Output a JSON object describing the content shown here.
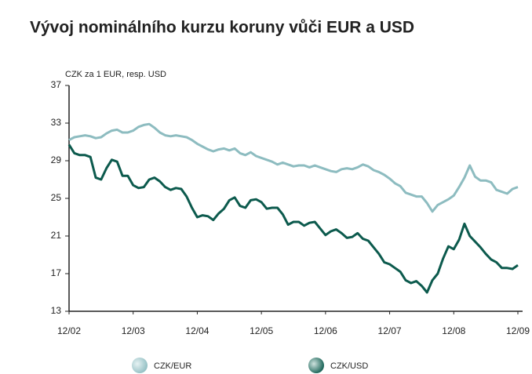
{
  "chart_data": {
    "type": "line",
    "title": "Vývoj nominálního kurzu koruny vůči EUR a USD",
    "y_label": "CZK za 1 EUR, resp. USD",
    "categories": [
      "12/02",
      null,
      null,
      null,
      null,
      null,
      null,
      null,
      null,
      null,
      null,
      null,
      "12/03",
      null,
      null,
      null,
      null,
      null,
      null,
      null,
      null,
      null,
      null,
      null,
      "12/04",
      null,
      null,
      null,
      null,
      null,
      null,
      null,
      null,
      null,
      null,
      null,
      "12/05",
      null,
      null,
      null,
      null,
      null,
      null,
      null,
      null,
      null,
      null,
      null,
      "12/06",
      null,
      null,
      null,
      null,
      null,
      null,
      null,
      null,
      null,
      null,
      null,
      "12/07",
      null,
      null,
      null,
      null,
      null,
      null,
      null,
      null,
      null,
      null,
      null,
      "12/08",
      null,
      null,
      null,
      null,
      null,
      null,
      null,
      null,
      null,
      null,
      null,
      "12/09"
    ],
    "series": [
      {
        "name": "CZK/EUR",
        "color": "#8dbcc0",
        "values": [
          31.2,
          31.5,
          31.6,
          31.7,
          31.6,
          31.4,
          31.5,
          31.9,
          32.2,
          32.3,
          32.0,
          32.0,
          32.2,
          32.6,
          32.8,
          32.9,
          32.5,
          32.0,
          31.7,
          31.6,
          31.7,
          31.6,
          31.5,
          31.2,
          30.8,
          30.5,
          30.2,
          30.0,
          30.2,
          30.3,
          30.1,
          30.3,
          29.8,
          29.6,
          29.9,
          29.5,
          29.3,
          29.1,
          28.9,
          28.6,
          28.8,
          28.6,
          28.4,
          28.5,
          28.5,
          28.3,
          28.5,
          28.3,
          28.1,
          27.9,
          27.8,
          28.1,
          28.2,
          28.1,
          28.3,
          28.6,
          28.4,
          28.0,
          27.8,
          27.5,
          27.1,
          26.6,
          26.3,
          25.6,
          25.4,
          25.2,
          25.2,
          24.5,
          23.6,
          24.3,
          24.6,
          24.9,
          25.3,
          26.2,
          27.2,
          28.5,
          27.3,
          26.9,
          26.9,
          26.7,
          25.9,
          25.7,
          25.5,
          26.0,
          26.2
        ]
      },
      {
        "name": "CZK/USD",
        "color": "#0c5a4d",
        "values": [
          30.7,
          29.8,
          29.6,
          29.6,
          29.4,
          27.2,
          27.0,
          28.2,
          29.1,
          28.9,
          27.4,
          27.4,
          26.4,
          26.1,
          26.2,
          27.0,
          27.2,
          26.8,
          26.2,
          25.9,
          26.1,
          26.0,
          25.2,
          24.0,
          23.0,
          23.2,
          23.1,
          22.7,
          23.4,
          23.9,
          24.8,
          25.1,
          24.2,
          24.0,
          24.8,
          24.9,
          24.6,
          23.9,
          24.0,
          24.0,
          23.3,
          22.2,
          22.5,
          22.5,
          22.1,
          22.4,
          22.5,
          21.8,
          21.1,
          21.5,
          21.7,
          21.3,
          20.8,
          20.9,
          21.3,
          20.7,
          20.5,
          19.8,
          19.1,
          18.2,
          18.0,
          17.6,
          17.2,
          16.3,
          16.0,
          16.2,
          15.7,
          15.0,
          16.3,
          17.0,
          18.6,
          19.9,
          19.6,
          20.6,
          22.3,
          21.0,
          20.4,
          19.8,
          19.1,
          18.5,
          18.2,
          17.6,
          17.6,
          17.5,
          17.9
        ]
      }
    ],
    "ylim": [
      13,
      37
    ],
    "yticks": [
      13,
      17,
      21,
      25,
      29,
      33,
      37
    ],
    "legend": "bottom"
  }
}
